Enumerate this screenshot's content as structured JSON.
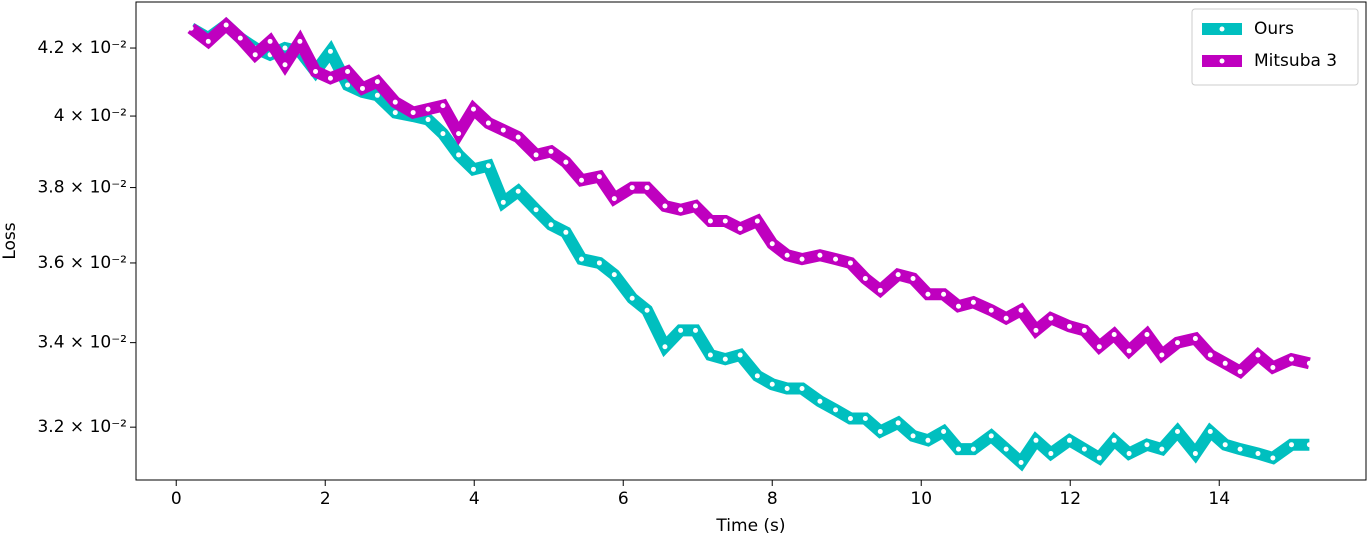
{
  "chart_data": {
    "type": "line",
    "xlabel": "Time (s)",
    "ylabel": "Loss",
    "log_y": true,
    "legend": "upper right",
    "xlim": [
      -0.54,
      15.97
    ],
    "xticks": [
      0,
      2,
      4,
      6,
      8,
      10,
      12,
      14
    ],
    "ylim": [
      0.03081,
      0.04341
    ],
    "yticks": [
      {
        "value": 0.032,
        "label": "3.2 × 10⁻²"
      },
      {
        "value": 0.034,
        "label": "3.4 × 10⁻²"
      },
      {
        "value": 0.036,
        "label": "3.6 × 10⁻²"
      },
      {
        "value": 0.038,
        "label": "3.8 × 10⁻²"
      },
      {
        "value": 0.04,
        "label": "4 × 10⁻²"
      },
      {
        "value": 0.042,
        "label": "4.2 × 10⁻²"
      }
    ],
    "x": [
      0.2,
      0.43,
      0.67,
      0.86,
      1.06,
      1.26,
      1.46,
      1.66,
      1.87,
      2.07,
      2.3,
      2.5,
      2.7,
      2.94,
      3.18,
      3.38,
      3.58,
      3.79,
      3.99,
      4.19,
      4.39,
      4.59,
      4.83,
      5.03,
      5.23,
      5.44,
      5.68,
      5.88,
      6.12,
      6.32,
      6.56,
      6.77,
      6.97,
      7.17,
      7.37,
      7.57,
      7.8,
      8.0,
      8.2,
      8.4,
      8.64,
      8.85,
      9.05,
      9.25,
      9.45,
      9.69,
      9.89,
      10.09,
      10.3,
      10.5,
      10.7,
      10.94,
      11.14,
      11.34,
      11.54,
      11.74,
      11.99,
      12.19,
      12.39,
      12.59,
      12.79,
      13.03,
      13.23,
      13.44,
      13.68,
      13.88,
      14.08,
      14.28,
      14.52,
      14.72,
      14.97,
      15.21
    ],
    "series": [
      {
        "name": "Ours",
        "color": "#00bfbf",
        "values": [
          0.0426,
          0.0423,
          0.0427,
          0.0423,
          0.042,
          0.0418,
          0.042,
          0.0419,
          0.0413,
          0.0419,
          0.0409,
          0.0407,
          0.0406,
          0.0401,
          0.04,
          0.0399,
          0.0395,
          0.0389,
          0.0385,
          0.0386,
          0.0376,
          0.0379,
          0.0374,
          0.037,
          0.0368,
          0.0361,
          0.036,
          0.0357,
          0.0351,
          0.0348,
          0.0339,
          0.0343,
          0.0343,
          0.0337,
          0.0336,
          0.0337,
          0.0332,
          0.033,
          0.0329,
          0.0329,
          0.0326,
          0.0324,
          0.0322,
          0.0322,
          0.0319,
          0.0321,
          0.0318,
          0.0317,
          0.0319,
          0.0315,
          0.0315,
          0.0318,
          0.0315,
          0.0312,
          0.0317,
          0.0314,
          0.0317,
          0.0315,
          0.0313,
          0.0317,
          0.0314,
          0.0316,
          0.0315,
          0.0319,
          0.0314,
          0.0319,
          0.0316,
          0.0315,
          0.0314,
          0.0313,
          0.0316,
          0.0316
        ]
      },
      {
        "name": "Mitsuba 3",
        "color": "#bf00bf",
        "values": [
          0.0426,
          0.0422,
          0.0427,
          0.0423,
          0.0418,
          0.0422,
          0.0415,
          0.0422,
          0.0413,
          0.0411,
          0.0413,
          0.0408,
          0.041,
          0.0404,
          0.0401,
          0.0402,
          0.0403,
          0.0395,
          0.0402,
          0.0398,
          0.0396,
          0.0394,
          0.0389,
          0.039,
          0.0387,
          0.0382,
          0.0383,
          0.0377,
          0.038,
          0.038,
          0.0375,
          0.0374,
          0.0375,
          0.0371,
          0.0371,
          0.0369,
          0.0371,
          0.0365,
          0.0362,
          0.0361,
          0.0362,
          0.0361,
          0.036,
          0.0356,
          0.0353,
          0.0357,
          0.0356,
          0.0352,
          0.0352,
          0.0349,
          0.035,
          0.0348,
          0.0346,
          0.0348,
          0.0343,
          0.0346,
          0.0344,
          0.0343,
          0.0339,
          0.0342,
          0.0338,
          0.0342,
          0.0337,
          0.034,
          0.0341,
          0.0337,
          0.0335,
          0.0333,
          0.0337,
          0.0334,
          0.0336,
          0.0335
        ]
      }
    ]
  }
}
